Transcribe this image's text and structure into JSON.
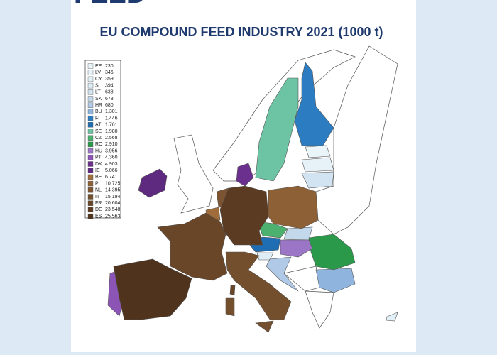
{
  "header": {
    "cropped_title": "FEED",
    "title": "EU COMPOUND FEED INDUSTRY 2021 (1000 t)"
  },
  "legend": {
    "items": [
      {
        "code": "EE",
        "value": "230",
        "color": "#eaf5f9"
      },
      {
        "code": "LV",
        "value": "346",
        "color": "#e6f2f8"
      },
      {
        "code": "CY",
        "value": "359",
        "color": "#e2f0f7"
      },
      {
        "code": "SI",
        "value": "394",
        "color": "#deedf6"
      },
      {
        "code": "LT",
        "value": "638",
        "color": "#d2e4f1"
      },
      {
        "code": "SK",
        "value": "678",
        "color": "#c4d8ec"
      },
      {
        "code": "HR",
        "value": "680",
        "color": "#afc9e6"
      },
      {
        "code": "BU",
        "value": "1.301",
        "color": "#8fb5de"
      },
      {
        "code": "FI",
        "value": "1.446",
        "color": "#2b7cc1"
      },
      {
        "code": "AT",
        "value": "1.761",
        "color": "#1f6db3"
      },
      {
        "code": "SE",
        "value": "1.980",
        "color": "#6cc4a4"
      },
      {
        "code": "CZ",
        "value": "2.568",
        "color": "#4cb06e"
      },
      {
        "code": "RO",
        "value": "2.910",
        "color": "#2a9a4a"
      },
      {
        "code": "HU",
        "value": "3.956",
        "color": "#9b76c6"
      },
      {
        "code": "PT",
        "value": "4.360",
        "color": "#8c55b5"
      },
      {
        "code": "DK",
        "value": "4.903",
        "color": "#6b2f8d"
      },
      {
        "code": "IE",
        "value": "5.066",
        "color": "#5e2a80"
      },
      {
        "code": "BE",
        "value": "6.741",
        "color": "#a06c3a"
      },
      {
        "code": "PL",
        "value": "10.725",
        "color": "#8d6035"
      },
      {
        "code": "NL",
        "value": "14.395",
        "color": "#7d5431"
      },
      {
        "code": "IT",
        "value": "15.194",
        "color": "#744f2d"
      },
      {
        "code": "FR",
        "value": "20.604",
        "color": "#6a4629"
      },
      {
        "code": "DE",
        "value": "23.548",
        "color": "#5b3b22"
      },
      {
        "code": "ES",
        "value": "25.563",
        "color": "#4f331d"
      }
    ]
  }
}
